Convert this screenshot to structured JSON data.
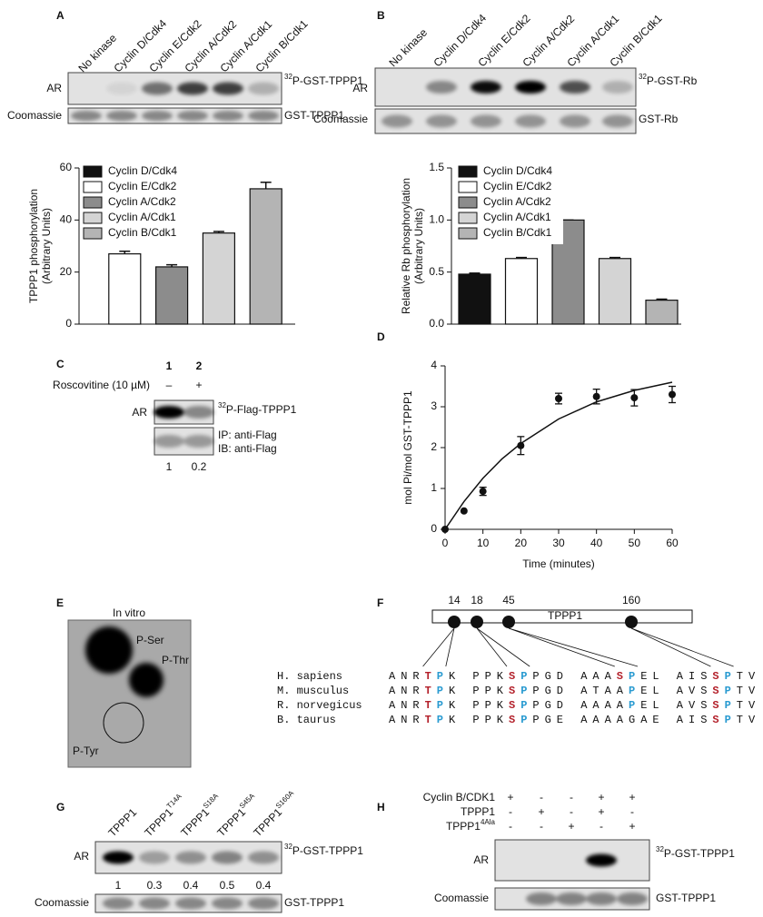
{
  "panels": {
    "A": {
      "label": "A",
      "lanes": [
        "No kinase",
        "Cyclin D/Cdk4",
        "Cyclin E/Cdk2",
        "Cyclin A/Cdk2",
        "Cyclin A/Cdk1",
        "Cyclin B/Cdk1"
      ],
      "blots": [
        {
          "name": "AR",
          "band": {
            "sup": "32",
            "text": "P-GST-TPPP1"
          }
        },
        {
          "name": "Coomassie",
          "band": "GST-TPPP1"
        }
      ]
    },
    "B": {
      "label": "B",
      "lanes": [
        "No kinase",
        "Cyclin D/Cdk4",
        "Cyclin E/Cdk2",
        "Cyclin A/Cdk2",
        "Cyclin A/Cdk1",
        "Cyclin B/Cdk1"
      ],
      "blots": [
        {
          "name": "AR",
          "band": {
            "sup": "32",
            "text": "P-GST-Rb"
          }
        },
        {
          "name": "Coomassie",
          "band": "GST-Rb"
        }
      ]
    },
    "C": {
      "label": "C",
      "lane_numbers": [
        "1",
        "2"
      ],
      "treatment": "Roscovitine (10 µM)",
      "treatment_signs": [
        "–",
        "+"
      ],
      "blots": [
        {
          "name": "AR",
          "band": {
            "sup": "32",
            "text": "P-Flag-TPPP1"
          }
        },
        {
          "band_lines": [
            "IP: anti-Flag",
            "IB: anti-Flag"
          ]
        }
      ],
      "quantification": [
        1,
        0.2
      ]
    },
    "D": {
      "label": "D"
    },
    "E": {
      "label": "E",
      "title": "In vitro",
      "spots": [
        "P-Ser",
        "P-Thr",
        "P-Tyr"
      ]
    },
    "F": {
      "label": "F",
      "protein": "TPPP1",
      "sites": [
        "14",
        "18",
        "45",
        "160"
      ],
      "site_mark": "P",
      "rows": [
        {
          "species": "H. sapiens",
          "sequence": "ANRTPK PPKSPPGD AAASPEL AISSPTV"
        },
        {
          "species": "M. musculus",
          "sequence": "ANRTPK PPKSPPGD ATAAPEL AVSSPTV"
        },
        {
          "species": "R. norvegicus",
          "sequence": "ANRTPK PPKSPPGD AAAAPEL AVSSPTV"
        },
        {
          "species": "B. taurus",
          "sequence": "ANRTPK PPKSPPGE AAAAGAE AISSPTV"
        }
      ]
    },
    "G": {
      "label": "G",
      "lanes": [
        "TPPP1",
        {
          "text": "TPPP1",
          "sup": "T14A"
        },
        {
          "text": "TPPP1",
          "sup": "S18A"
        },
        {
          "text": "TPPP1",
          "sup": "S45A"
        },
        {
          "text": "TPPP1",
          "sup": "S160A"
        }
      ],
      "blots": [
        {
          "name": "AR",
          "band": {
            "sup": "32",
            "text": "P-GST-TPPP1"
          }
        },
        {
          "name": "Coomassie",
          "band": "GST-TPPP1"
        }
      ],
      "quantification": [
        1,
        0.3,
        0.4,
        0.5,
        0.4
      ]
    },
    "H": {
      "label": "H",
      "rows": [
        {
          "name": "Cyclin B/CDK1",
          "signs": [
            "+",
            "-",
            "-",
            "+",
            "+"
          ]
        },
        {
          "name": "TPPP1",
          "signs": [
            "-",
            "+",
            "-",
            "+",
            "-"
          ]
        },
        {
          "name": {
            "text": "TPPP1",
            "sup": "4Ala"
          },
          "signs": [
            "-",
            "-",
            "+",
            "-",
            "+"
          ]
        }
      ],
      "blots": [
        {
          "name": "AR",
          "band": {
            "sup": "32",
            "text": "P-GST-TPPP1"
          }
        },
        {
          "name": "Coomassie",
          "band": "GST-TPPP1"
        }
      ]
    }
  },
  "chart_data": [
    {
      "type": "bar",
      "categories": [
        "Cyclin D/Cdk4",
        "Cyclin E/Cdk2",
        "Cyclin A/Cdk2",
        "Cyclin A/Cdk1",
        "Cyclin B/Cdk1"
      ],
      "values": [
        null,
        27,
        22,
        35,
        52
      ],
      "errors": [
        null,
        1,
        0.8,
        0.6,
        2.5
      ],
      "colors": [
        "#111111",
        "#ffffff",
        "#8c8c8c",
        "#d4d4d4",
        "#b4b4b4"
      ],
      "ylabel": [
        "TPPP1 phosphorylation",
        "(Arbitrary Units)"
      ],
      "ylim": [
        0,
        60
      ],
      "yticks": [
        0,
        20,
        40,
        60
      ],
      "legend": "top-left"
    },
    {
      "type": "bar",
      "categories": [
        "Cyclin D/Cdk4",
        "Cyclin E/Cdk2",
        "Cyclin A/Cdk2",
        "Cyclin A/Cdk1",
        "Cyclin B/Cdk1"
      ],
      "values": [
        0.48,
        0.63,
        1.0,
        0.63,
        0.23
      ],
      "errors": [
        0.01,
        0.01,
        0,
        0.01,
        0.01
      ],
      "colors": [
        "#111111",
        "#ffffff",
        "#8c8c8c",
        "#d4d4d4",
        "#b4b4b4"
      ],
      "ylabel": [
        "Relative Rb phosphorylation",
        "(Arbitrary Units)"
      ],
      "ylim": [
        0,
        1.5
      ],
      "yticks": [
        {
          "value": 0,
          "label": "0.0"
        },
        0.5,
        {
          "value": 1,
          "label": "1.0"
        },
        {
          "value": 1.5,
          "label": "1.5"
        }
      ],
      "legend": "top-left"
    },
    {
      "type": "scatter",
      "x": [
        0,
        5,
        10,
        20,
        30,
        40,
        50,
        60
      ],
      "values": [
        0,
        0.45,
        0.93,
        2.05,
        3.2,
        3.25,
        3.22,
        3.3
      ],
      "errors": [
        0,
        0,
        0.1,
        0.22,
        0.13,
        0.18,
        0.2,
        0.2
      ],
      "fit": {
        "x": [
          0,
          5,
          10,
          15,
          20,
          30,
          40,
          50,
          60
        ],
        "values": [
          0,
          0.68,
          1.25,
          1.72,
          2.1,
          2.7,
          3.12,
          3.4,
          3.6
        ]
      },
      "xlabel": "Time (minutes)",
      "ylabel": "mol Pi/mol GST-TPPP1",
      "color": "#111111",
      "xlim": [
        0,
        60
      ],
      "xticks": [
        0,
        10,
        20,
        30,
        40,
        50,
        60
      ],
      "ylim": [
        0,
        4
      ],
      "yticks": [
        0,
        1,
        2,
        3,
        4
      ]
    }
  ]
}
